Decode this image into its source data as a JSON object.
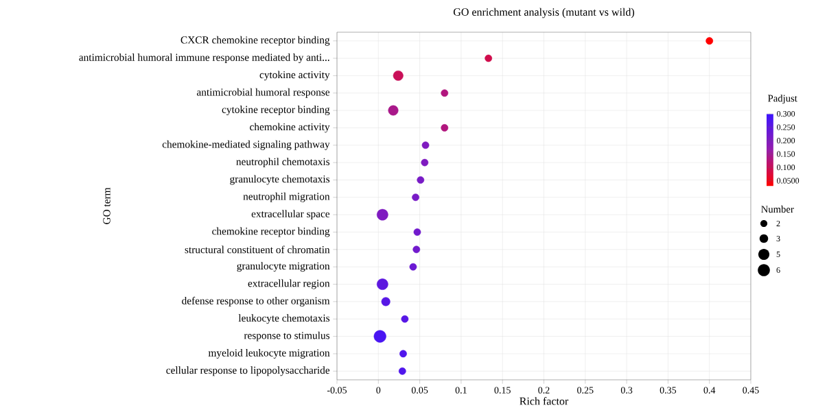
{
  "chart_data": {
    "type": "bubble",
    "title": "GO enrichment analysis (mutant vs wild)",
    "xlabel": "Rich factor",
    "ylabel": "GO term",
    "orientation": "horizontal",
    "categories": [
      "CXCR chemokine receptor binding",
      "antimicrobial humoral immune response mediated by anti...",
      "cytokine activity",
      "antimicrobial humoral response",
      "cytokine receptor binding",
      "chemokine activity",
      "chemokine-mediated signaling pathway",
      "neutrophil chemotaxis",
      "granulocyte chemotaxis",
      "neutrophil migration",
      "extracellular space",
      "chemokine receptor binding",
      "structural constituent of chromatin",
      "granulocyte migration",
      "extracellular region",
      "defense response to other organism",
      "leukocyte chemotaxis",
      "response to stimulus",
      "myeloid leukocyte migration",
      "cellular response to lipopolysaccharide"
    ],
    "values": [
      0.4,
      0.133,
      0.024,
      0.08,
      0.018,
      0.08,
      0.057,
      0.056,
      0.051,
      0.045,
      0.005,
      0.047,
      0.046,
      0.042,
      0.005,
      0.009,
      0.032,
      0.002,
      0.03,
      0.029
    ],
    "sizes": [
      2,
      2,
      4,
      2,
      4,
      2,
      2,
      2,
      2,
      2,
      5,
      2,
      2,
      2,
      5,
      3,
      2,
      6,
      2,
      2
    ],
    "cvalues": [
      0.03,
      0.09,
      0.1,
      0.13,
      0.14,
      0.13,
      0.2,
      0.2,
      0.21,
      0.21,
      0.2,
      0.22,
      0.22,
      0.23,
      0.25,
      0.26,
      0.26,
      0.28,
      0.27,
      0.27
    ],
    "size_legend": [
      2,
      3,
      5,
      6
    ],
    "legend_title": "Number",
    "clabel": "Padjust",
    "clim": [
      0.03,
      0.3
    ],
    "cticks": [
      {
        "value": 0.3,
        "label": "0.300"
      },
      {
        "value": 0.25,
        "label": "0.250"
      },
      {
        "value": 0.2,
        "label": "0.200"
      },
      {
        "value": 0.15,
        "label": "0.150"
      },
      {
        "value": 0.1,
        "label": "0.100"
      },
      {
        "value": 0.05,
        "label": "0.0500"
      }
    ],
    "xlim": [
      -0.05,
      0.45
    ],
    "xticks": [
      -0.05,
      0,
      0.05,
      0.1,
      0.15,
      0.2,
      0.25,
      0.3,
      0.35,
      0.4,
      0.45
    ],
    "grid": true,
    "marker": "circle"
  }
}
